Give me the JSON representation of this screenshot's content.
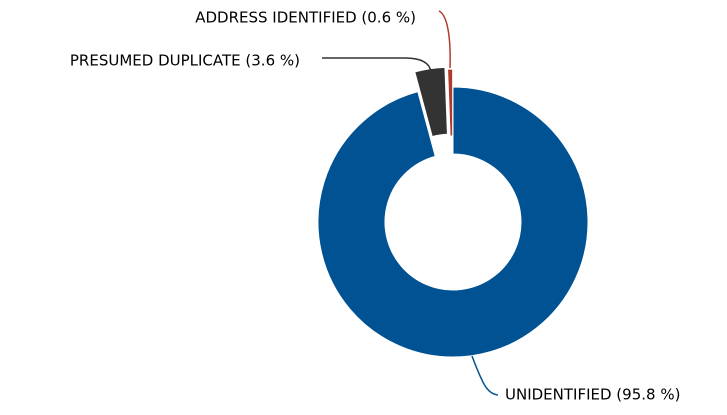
{
  "chart_data": {
    "type": "donut",
    "values": [
      95.8,
      3.6,
      0.6
    ],
    "value_labels": [
      "UNIDENTIFIED (95.8 %)",
      "PRESUMED DUPLICATE (3.6 %)",
      "ADDRESS IDENTIFIED (0.6 %)"
    ],
    "colors": [
      "#005293",
      "#333333",
      "#b03a2e"
    ]
  }
}
